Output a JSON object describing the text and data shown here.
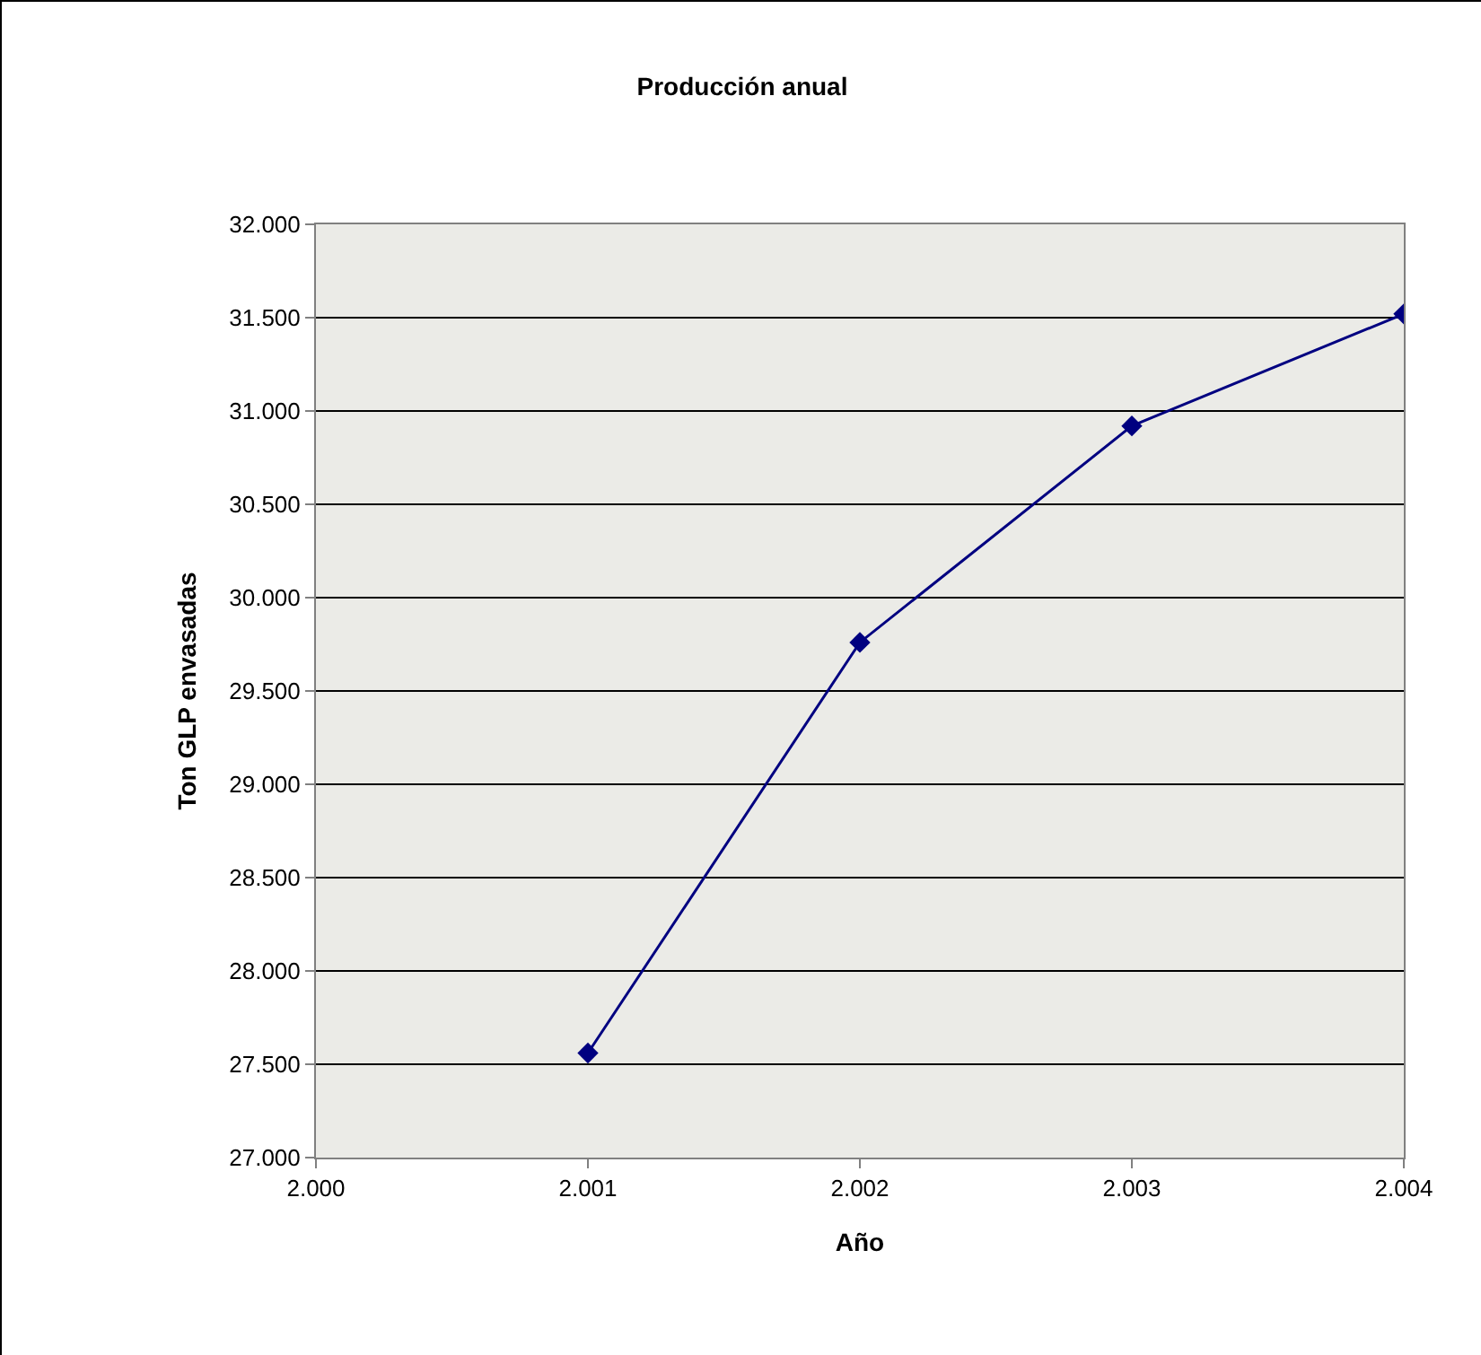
{
  "chart_data": {
    "type": "line",
    "title": "Producción anual",
    "xlabel": "Año",
    "ylabel": "Ton GLP envasadas",
    "x": [
      2001,
      2002,
      2003,
      2004
    ],
    "series": [
      {
        "color": "#000080",
        "values": [
          27560,
          29760,
          30920,
          31520
        ]
      }
    ],
    "xlim": [
      2000,
      2004
    ],
    "xticks": [
      {
        "value": 2000,
        "label": "2.000"
      },
      {
        "value": 2001,
        "label": "2.001"
      },
      {
        "value": 2002,
        "label": "2.002"
      },
      {
        "value": 2003,
        "label": "2.003"
      },
      {
        "value": 2004,
        "label": "2.004"
      }
    ],
    "ylim": [
      27000,
      32000
    ],
    "yticks": [
      {
        "value": 27000,
        "label": "27.000"
      },
      {
        "value": 27500,
        "label": "27.500"
      },
      {
        "value": 28000,
        "label": "28.000"
      },
      {
        "value": 28500,
        "label": "28.500"
      },
      {
        "value": 29000,
        "label": "29.000"
      },
      {
        "value": 29500,
        "label": "29.500"
      },
      {
        "value": 30000,
        "label": "30.000"
      },
      {
        "value": 30500,
        "label": "30.500"
      },
      {
        "value": 31000,
        "label": "31.000"
      },
      {
        "value": 31500,
        "label": "31.500"
      },
      {
        "value": 32000,
        "label": "32.000"
      }
    ],
    "grid": "y",
    "marker": "diamond",
    "line_style": "solid"
  }
}
